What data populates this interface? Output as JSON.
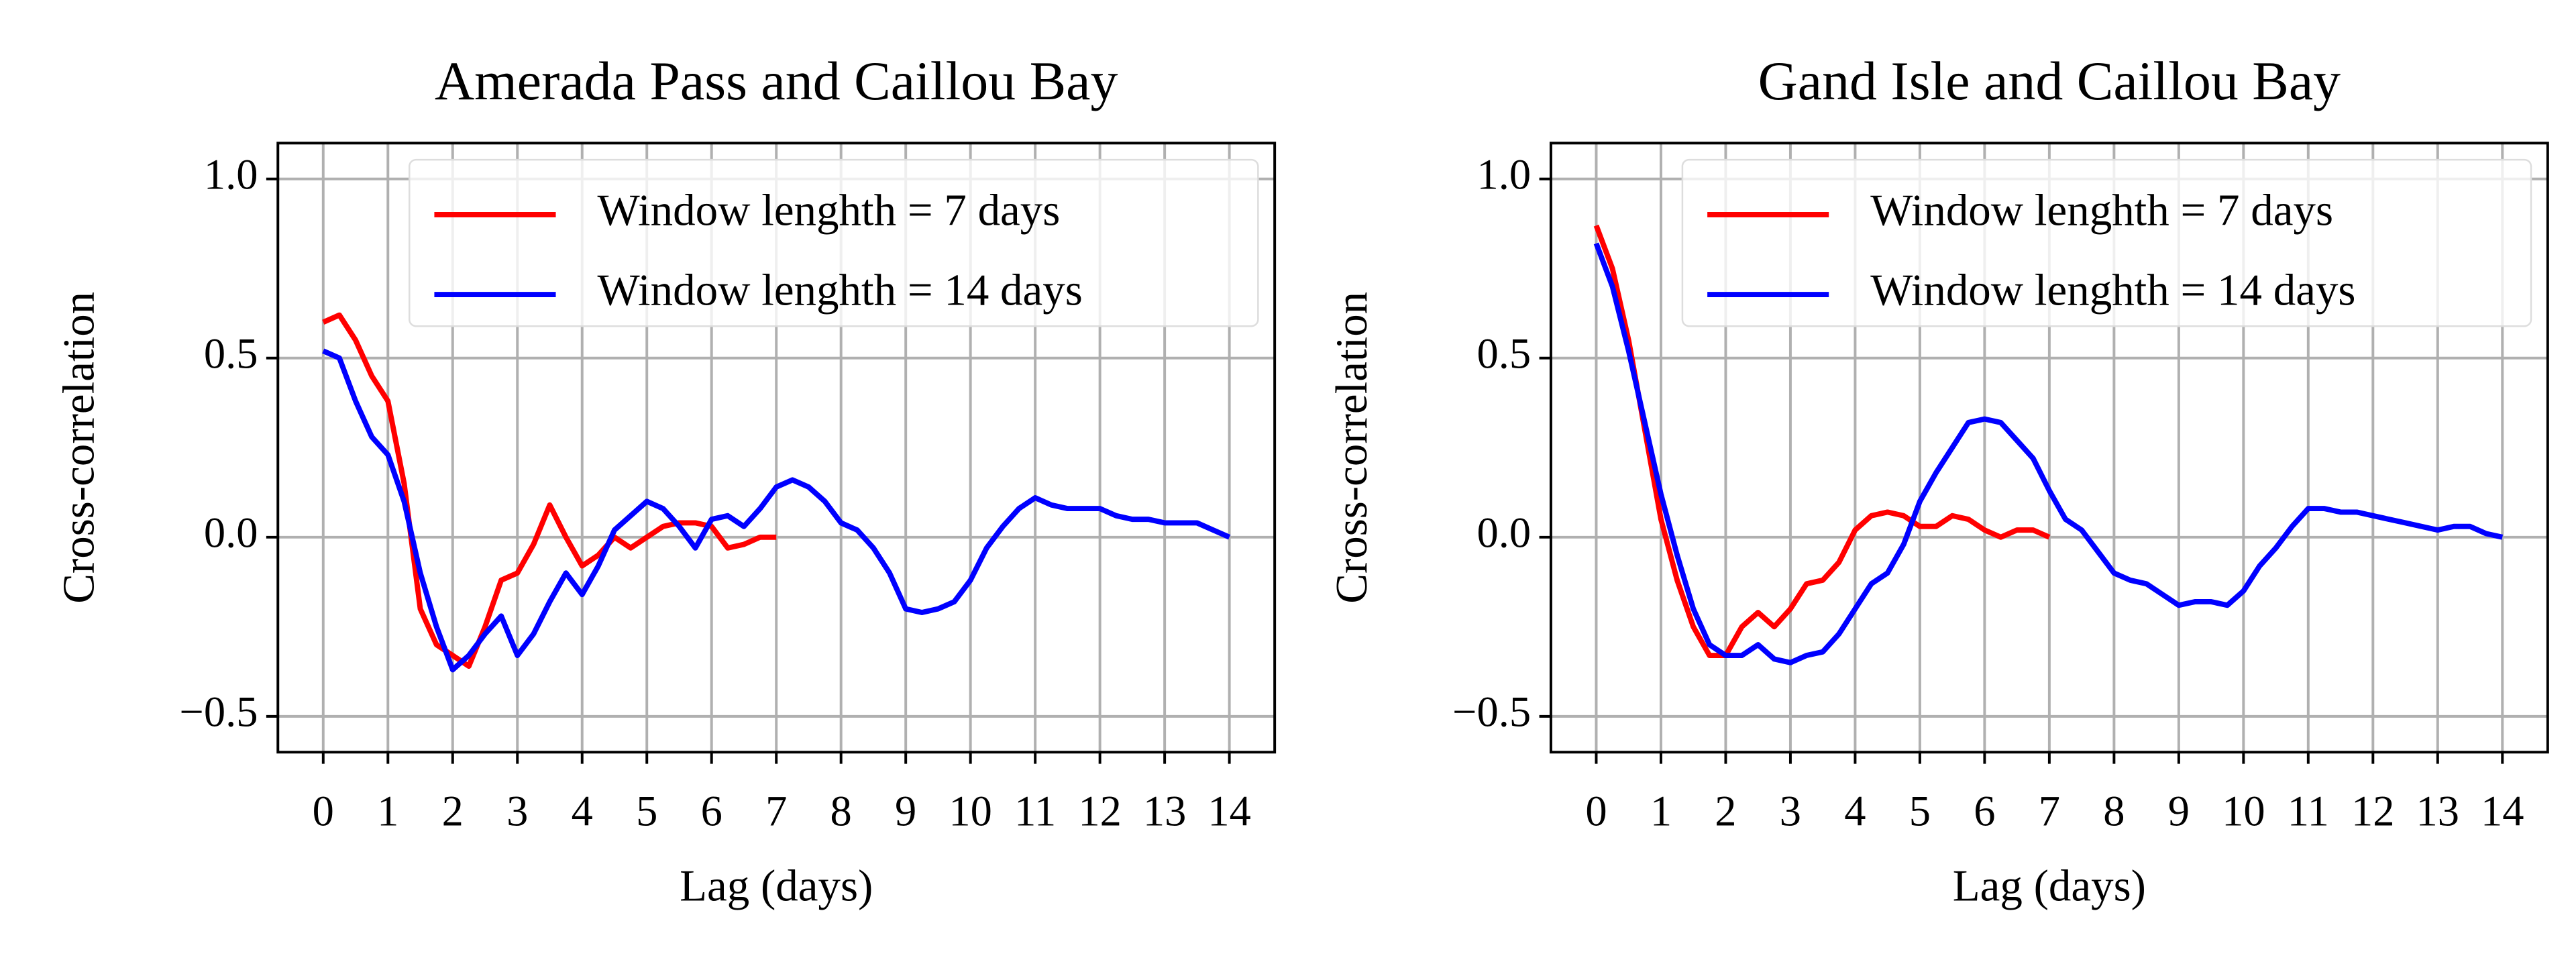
{
  "chart_data": [
    {
      "type": "line",
      "title": "Amerada Pass and Caillou Bay",
      "xlabel": "Lag (days)",
      "ylabel": "Cross-correlation",
      "xlim": [
        -0.7,
        14.7
      ],
      "ylim": [
        -0.6,
        1.1
      ],
      "xticks": [
        0,
        1,
        2,
        3,
        4,
        5,
        6,
        7,
        8,
        9,
        10,
        11,
        12,
        13,
        14
      ],
      "yticks": [
        {
          "value": -0.5,
          "label": "−0.5"
        },
        {
          "value": 0,
          "label": "0.0"
        },
        0.5,
        {
          "value": 1,
          "label": "1.0"
        }
      ],
      "grid": true,
      "legend": "upper right",
      "series": [
        {
          "name": "Window lenghth = 7 days",
          "color": "#ff0000",
          "x": [
            0,
            0.25,
            0.5,
            0.75,
            1,
            1.25,
            1.5,
            1.75,
            2,
            2.25,
            2.5,
            2.75,
            3,
            3.25,
            3.5,
            3.75,
            4,
            4.25,
            4.5,
            4.75,
            5,
            5.25,
            5.5,
            5.75,
            6,
            6.25,
            6.5,
            6.75,
            7
          ],
          "values": [
            0.6,
            0.62,
            0.55,
            0.45,
            0.38,
            0.15,
            -0.2,
            -0.3,
            -0.33,
            -0.36,
            -0.25,
            -0.12,
            -0.1,
            -0.02,
            0.09,
            0,
            -0.08,
            -0.05,
            0,
            -0.03,
            0,
            0.03,
            0.04,
            0.04,
            0.03,
            -0.03,
            -0.02,
            0,
            0
          ]
        },
        {
          "name": "Window lenghth = 14 days",
          "color": "#0000ff",
          "x": [
            0,
            0.25,
            0.5,
            0.75,
            1,
            1.25,
            1.5,
            1.75,
            2,
            2.25,
            2.5,
            2.75,
            3,
            3.25,
            3.5,
            3.75,
            4,
            4.25,
            4.5,
            4.75,
            5,
            5.25,
            5.5,
            5.75,
            6,
            6.25,
            6.5,
            6.75,
            7,
            7.25,
            7.5,
            7.75,
            8,
            8.25,
            8.5,
            8.75,
            9,
            9.25,
            9.5,
            9.75,
            10,
            10.25,
            10.5,
            10.75,
            11,
            11.25,
            11.5,
            11.75,
            12,
            12.25,
            12.5,
            12.75,
            13,
            13.25,
            13.5,
            13.75,
            14
          ],
          "values": [
            0.52,
            0.5,
            0.38,
            0.28,
            0.23,
            0.1,
            -0.1,
            -0.25,
            -0.37,
            -0.33,
            -0.27,
            -0.22,
            -0.33,
            -0.27,
            -0.18,
            -0.1,
            -0.16,
            -0.08,
            0.02,
            0.06,
            0.1,
            0.08,
            0.03,
            -0.03,
            0.05,
            0.06,
            0.03,
            0.08,
            0.14,
            0.16,
            0.14,
            0.1,
            0.04,
            0.02,
            -0.03,
            -0.1,
            -0.2,
            -0.21,
            -0.2,
            -0.18,
            -0.12,
            -0.03,
            0.03,
            0.08,
            0.11,
            0.09,
            0.08,
            0.08,
            0.08,
            0.06,
            0.05,
            0.05,
            0.04,
            0.04,
            0.04,
            0.02,
            0
          ]
        }
      ]
    },
    {
      "type": "line",
      "title": "Gand Isle and Caillou Bay",
      "xlabel": "Lag (days)",
      "ylabel": "Cross-correlation",
      "xlim": [
        -0.7,
        14.7
      ],
      "ylim": [
        -0.6,
        1.1
      ],
      "xticks": [
        0,
        1,
        2,
        3,
        4,
        5,
        6,
        7,
        8,
        9,
        10,
        11,
        12,
        13,
        14
      ],
      "yticks": [
        {
          "value": -0.5,
          "label": "−0.5"
        },
        {
          "value": 0,
          "label": "0.0"
        },
        0.5,
        {
          "value": 1,
          "label": "1.0"
        }
      ],
      "grid": true,
      "legend": "upper right",
      "series": [
        {
          "name": "Window lenghth = 7 days",
          "color": "#ff0000",
          "x": [
            0,
            0.25,
            0.5,
            0.75,
            1,
            1.25,
            1.5,
            1.75,
            2,
            2.25,
            2.5,
            2.75,
            3,
            3.25,
            3.5,
            3.75,
            4,
            4.25,
            4.5,
            4.75,
            5,
            5.25,
            5.5,
            5.75,
            6,
            6.25,
            6.5,
            6.75,
            7
          ],
          "values": [
            0.87,
            0.75,
            0.55,
            0.3,
            0.05,
            -0.12,
            -0.25,
            -0.33,
            -0.33,
            -0.25,
            -0.21,
            -0.25,
            -0.2,
            -0.13,
            -0.12,
            -0.07,
            0.02,
            0.06,
            0.07,
            0.06,
            0.03,
            0.03,
            0.06,
            0.05,
            0.02,
            0,
            0.02,
            0.02,
            0
          ]
        },
        {
          "name": "Window lenghth = 14 days",
          "color": "#0000ff",
          "x": [
            0,
            0.25,
            0.5,
            0.75,
            1,
            1.25,
            1.5,
            1.75,
            2,
            2.25,
            2.5,
            2.75,
            3,
            3.25,
            3.5,
            3.75,
            4,
            4.25,
            4.5,
            4.75,
            5,
            5.25,
            5.5,
            5.75,
            6,
            6.25,
            6.5,
            6.75,
            7,
            7.25,
            7.5,
            7.75,
            8,
            8.25,
            8.5,
            8.75,
            9,
            9.25,
            9.5,
            9.75,
            10,
            10.25,
            10.5,
            10.75,
            11,
            11.25,
            11.5,
            11.75,
            12,
            12.25,
            12.5,
            12.75,
            13,
            13.25,
            13.5,
            13.75,
            14
          ],
          "values": [
            0.82,
            0.7,
            0.52,
            0.32,
            0.12,
            -0.05,
            -0.2,
            -0.3,
            -0.33,
            -0.33,
            -0.3,
            -0.34,
            -0.35,
            -0.33,
            -0.32,
            -0.27,
            -0.2,
            -0.13,
            -0.1,
            -0.02,
            0.1,
            0.18,
            0.25,
            0.32,
            0.33,
            0.32,
            0.27,
            0.22,
            0.13,
            0.05,
            0.02,
            -0.04,
            -0.1,
            -0.12,
            -0.13,
            -0.16,
            -0.19,
            -0.18,
            -0.18,
            -0.19,
            -0.15,
            -0.08,
            -0.03,
            0.03,
            0.08,
            0.08,
            0.07,
            0.07,
            0.06,
            0.05,
            0.04,
            0.03,
            0.02,
            0.03,
            0.03,
            0.01,
            0
          ]
        }
      ]
    }
  ]
}
